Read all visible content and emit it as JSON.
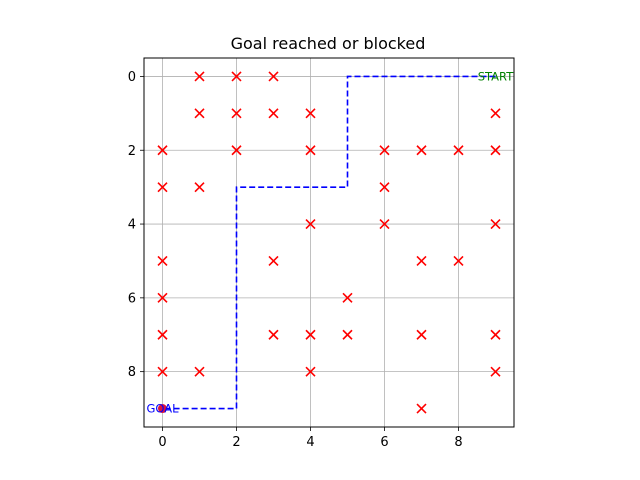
{
  "chart_data": {
    "type": "scatter",
    "title": "Goal reached or blocked",
    "xlabel": "",
    "ylabel": "",
    "xlim": [
      -0.5,
      9.5
    ],
    "ylim": [
      9.5,
      -0.5
    ],
    "y_inverted": true,
    "grid": true,
    "xticks": [
      0,
      2,
      4,
      6,
      8
    ],
    "yticks": [
      0,
      2,
      4,
      6,
      8
    ],
    "obstacles": {
      "marker": "x",
      "color": "#ff0000",
      "points": [
        [
          1,
          0
        ],
        [
          2,
          0
        ],
        [
          3,
          0
        ],
        [
          1,
          1
        ],
        [
          2,
          1
        ],
        [
          3,
          1
        ],
        [
          4,
          1
        ],
        [
          9,
          1
        ],
        [
          0,
          2
        ],
        [
          2,
          2
        ],
        [
          4,
          2
        ],
        [
          6,
          2
        ],
        [
          7,
          2
        ],
        [
          8,
          2
        ],
        [
          9,
          2
        ],
        [
          0,
          3
        ],
        [
          1,
          3
        ],
        [
          6,
          3
        ],
        [
          4,
          4
        ],
        [
          6,
          4
        ],
        [
          9,
          4
        ],
        [
          0,
          5
        ],
        [
          3,
          5
        ],
        [
          7,
          5
        ],
        [
          8,
          5
        ],
        [
          0,
          6
        ],
        [
          5,
          6
        ],
        [
          0,
          7
        ],
        [
          3,
          7
        ],
        [
          4,
          7
        ],
        [
          5,
          7
        ],
        [
          7,
          7
        ],
        [
          9,
          7
        ],
        [
          0,
          8
        ],
        [
          1,
          8
        ],
        [
          4,
          8
        ],
        [
          9,
          8
        ],
        [
          7,
          9
        ]
      ]
    },
    "path": {
      "style": "dashed",
      "color": "#0000ff",
      "points": [
        [
          9,
          0
        ],
        [
          5,
          0
        ],
        [
          5,
          3
        ],
        [
          2,
          3
        ],
        [
          2,
          9
        ],
        [
          0,
          9
        ]
      ]
    },
    "goal_marker": {
      "x": 0,
      "y": 9,
      "color": "#dc143c"
    },
    "annotations": [
      {
        "text": "START",
        "x": 9,
        "y": 0,
        "color": "#008000"
      },
      {
        "text": "GOAL",
        "x": 0,
        "y": 9,
        "color": "#0000ff"
      }
    ]
  }
}
